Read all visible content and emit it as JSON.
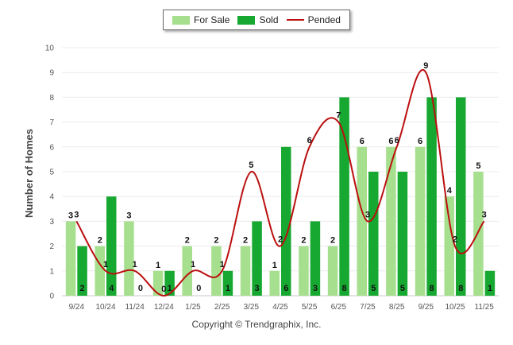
{
  "chart_data": {
    "type": "bar",
    "categories": [
      "9/24",
      "10/24",
      "11/24",
      "12/24",
      "1/25",
      "2/25",
      "3/25",
      "4/25",
      "5/25",
      "6/25",
      "7/25",
      "8/25",
      "9/25",
      "10/25",
      "11/25"
    ],
    "series": [
      {
        "name": "For Sale",
        "type": "bar",
        "color": "#a6df8e",
        "values": [
          3,
          2,
          3,
          1,
          2,
          2,
          2,
          1,
          2,
          2,
          6,
          6,
          6,
          4,
          5
        ]
      },
      {
        "name": "Sold",
        "type": "bar",
        "color": "#17a831",
        "values": [
          2,
          4,
          0,
          1,
          0,
          1,
          3,
          6,
          3,
          8,
          5,
          5,
          8,
          8,
          1
        ]
      },
      {
        "name": "Pended",
        "type": "line",
        "color": "#bb0f0f",
        "values": [
          3,
          1,
          1,
          0,
          1,
          1,
          5,
          2,
          6,
          7,
          3,
          6,
          9,
          2,
          3
        ]
      }
    ],
    "ylabel": "Number of Homes",
    "xlabel": "",
    "ylim": [
      0,
      10
    ],
    "yticks": [
      0,
      1,
      2,
      3,
      4,
      5,
      6,
      7,
      8,
      9,
      10
    ],
    "grid": true,
    "legend_position": "top-center"
  },
  "legend": {
    "for_sale": "For Sale",
    "sold": "Sold",
    "pended": "Pended"
  },
  "footer": {
    "copyright": "Copyright © Trendgraphix, Inc."
  }
}
